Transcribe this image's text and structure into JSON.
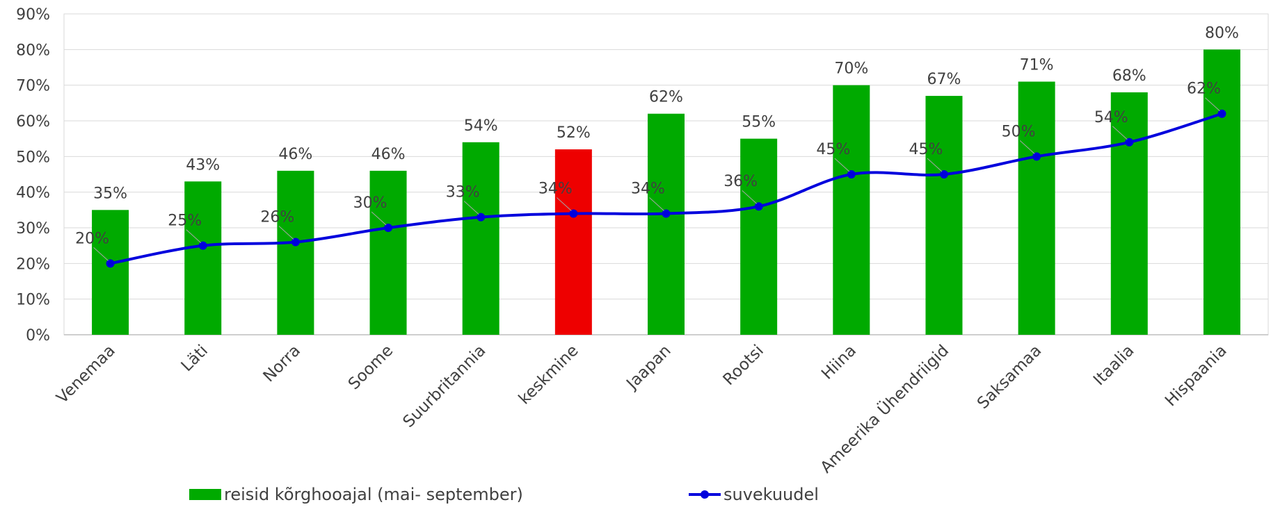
{
  "chart_data": {
    "type": "bar",
    "categories": [
      "Venemaa",
      "Läti",
      "Norra",
      "Soome",
      "Suurbritannia",
      "keskmine",
      "Jaapan",
      "Rootsi",
      "Hiina",
      "Ameerika Ühendriigid",
      "Saksamaa",
      "Itaalia",
      "Hispaania"
    ],
    "series": [
      {
        "name": "reisid kõrghooajal (mai- september)",
        "type": "bar",
        "values": [
          35,
          43,
          46,
          46,
          54,
          52,
          62,
          55,
          70,
          67,
          71,
          68,
          80
        ],
        "labels": [
          "35%",
          "43%",
          "46%",
          "46%",
          "54%",
          "52%",
          "62%",
          "55%",
          "70%",
          "67%",
          "71%",
          "68%",
          "80%"
        ],
        "color": "#00AA00",
        "highlight": {
          "index": 5,
          "color": "#EE0000"
        }
      },
      {
        "name": "suvekuudel",
        "type": "line",
        "values": [
          20,
          25,
          26,
          30,
          33,
          34,
          34,
          36,
          45,
          45,
          50,
          54,
          62
        ],
        "labels": [
          "20%",
          "25%",
          "26%",
          "30%",
          "33%",
          "34%",
          "34%",
          "36%",
          "45%",
          "45%",
          "50%",
          "54%",
          "62%"
        ],
        "color": "#0000DD"
      }
    ],
    "ylim": [
      0,
      90
    ],
    "yticks": [
      "0%",
      "10%",
      "20%",
      "30%",
      "40%",
      "50%",
      "60%",
      "70%",
      "80%",
      "90%"
    ],
    "grid": true,
    "legend": "bottom"
  }
}
